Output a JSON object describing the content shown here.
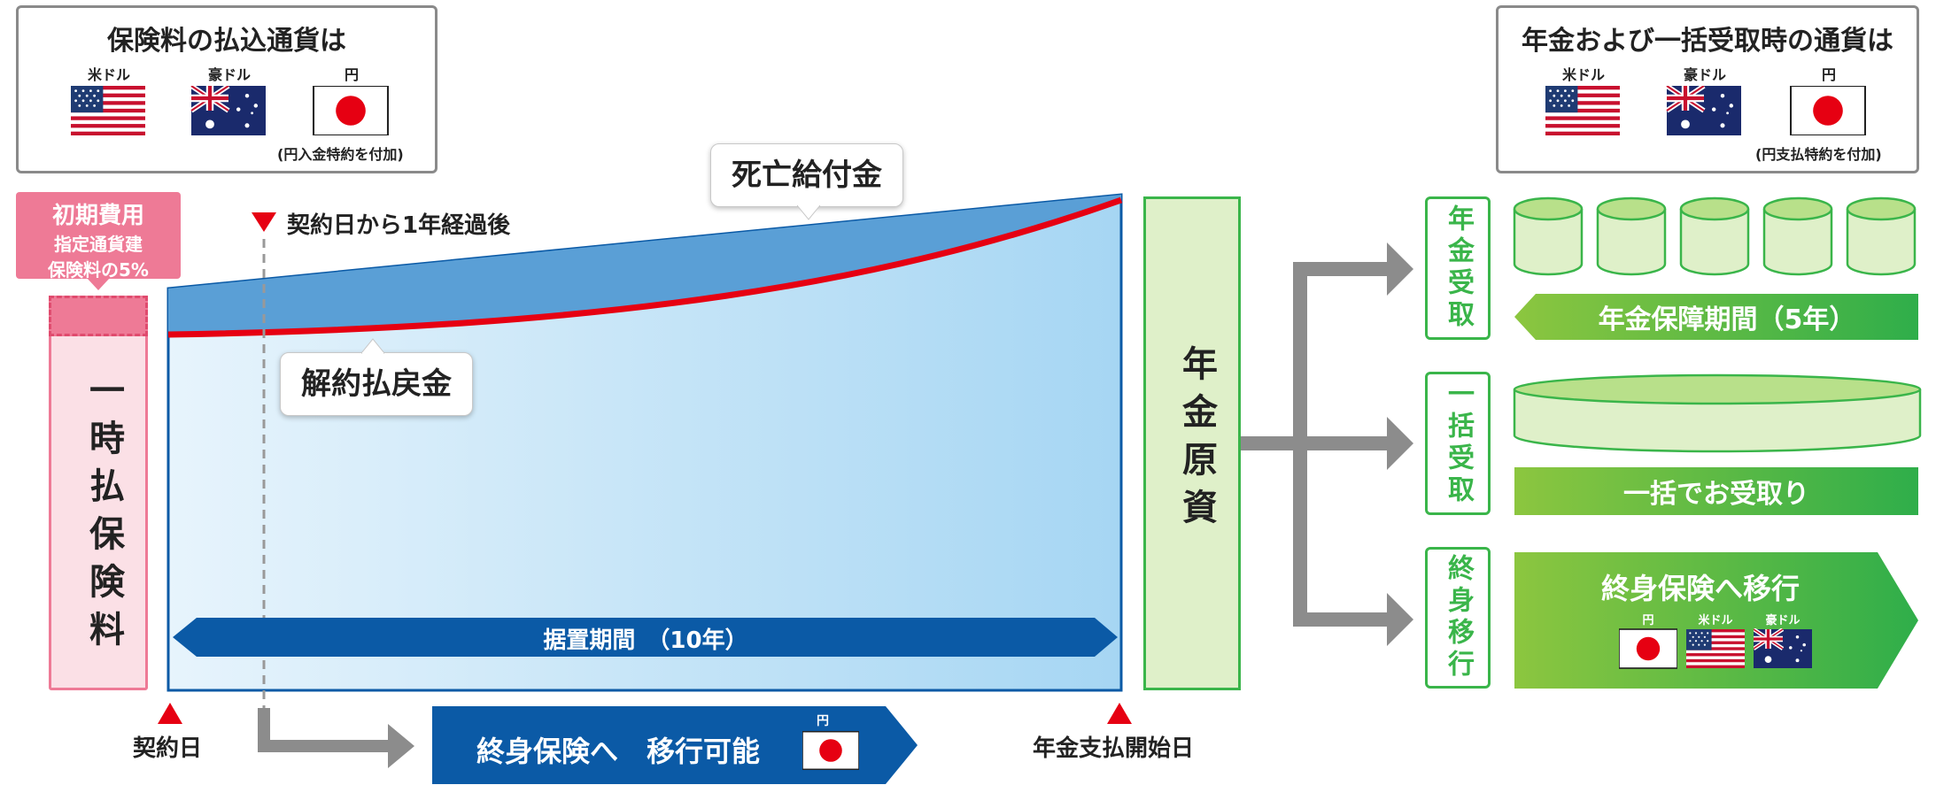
{
  "premium_currency": {
    "title": "保険料の払込通貨は",
    "labels": [
      "米ドル",
      "豪ドル",
      "円"
    ],
    "note": "(円入金特約を付加)"
  },
  "payout_currency": {
    "title": "年金および一括受取時の通貨は",
    "labels": [
      "米ドル",
      "豪ドル",
      "円"
    ],
    "note": "(円支払特約を付加)"
  },
  "initial_cost": {
    "line1": "初期費用",
    "line2": "指定通貨建",
    "line3": "保険料の5%"
  },
  "lump_premium_label": "一時払保険料",
  "after_one_year": "契約日から1年経過後",
  "death_benefit": "死亡給付金",
  "surrender_value": "解約払戻金",
  "deferral_period": "据置期間　（10年）",
  "contract_date": "契約日",
  "annuity_start_date": "年金支払開始日",
  "transfer_possible": {
    "text": "終身保険へ　移行可能",
    "currency": "円"
  },
  "annuity_fund": "年金原資",
  "options": {
    "annuity": {
      "label": "年金受取",
      "bar": "年金保障期間（5年）"
    },
    "lump": {
      "label": "一括受取",
      "bar": "一括でお受取り"
    },
    "transfer": {
      "label": "終身移行",
      "bar": "終身保険へ移行",
      "currencies": [
        "円",
        "米ドル",
        "豪ドル"
      ]
    }
  },
  "colors": {
    "blue_dark": "#0b5aa6",
    "blue_fill": "#a9d8f4",
    "red_line": "#e60012",
    "pink": "#ee7a96",
    "pink_light": "#fbe0e6",
    "green": "#3ab54a",
    "green_light": "#dff0c9",
    "gray_arrow": "#8c8c8c"
  }
}
